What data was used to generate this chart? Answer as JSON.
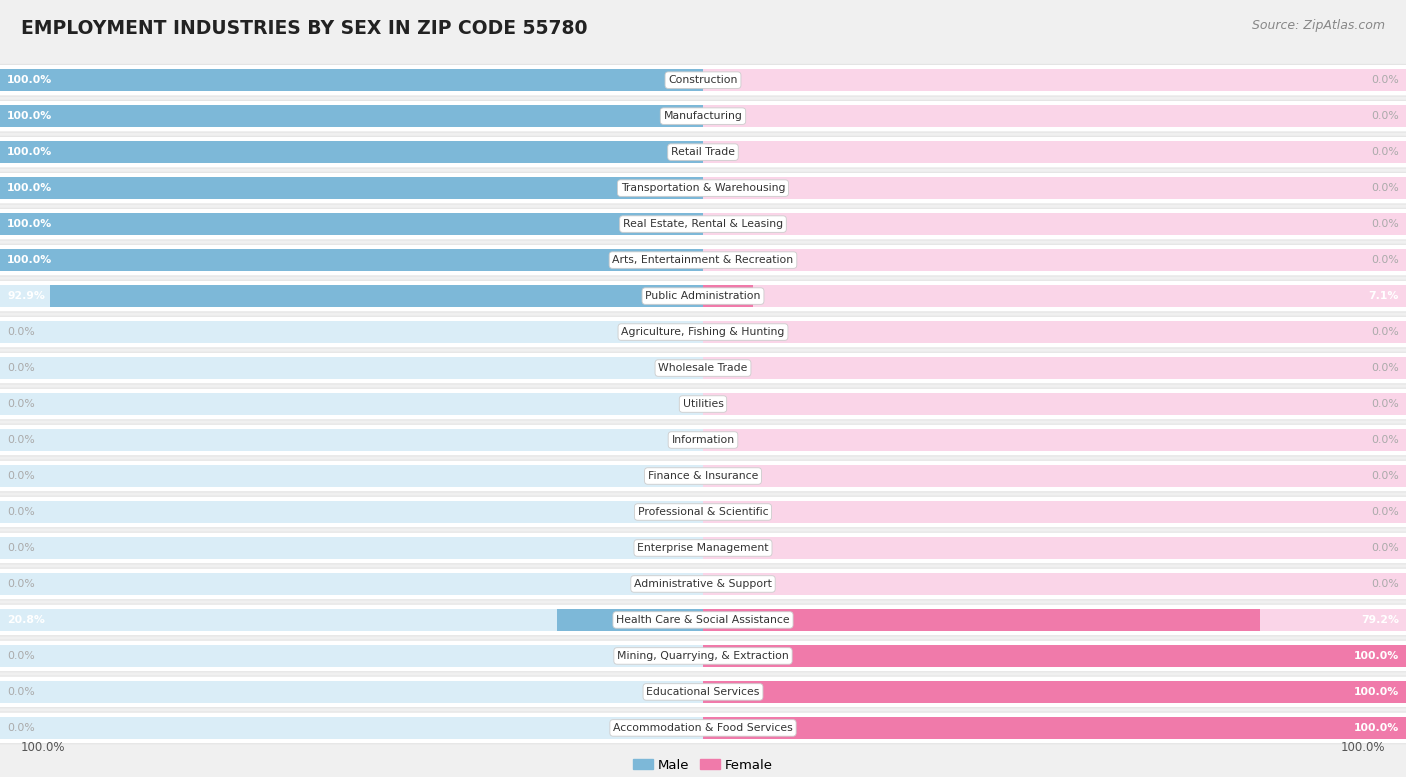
{
  "title": "EMPLOYMENT INDUSTRIES BY SEX IN ZIP CODE 55780",
  "source": "Source: ZipAtlas.com",
  "categories": [
    "Construction",
    "Manufacturing",
    "Retail Trade",
    "Transportation & Warehousing",
    "Real Estate, Rental & Leasing",
    "Arts, Entertainment & Recreation",
    "Public Administration",
    "Agriculture, Fishing & Hunting",
    "Wholesale Trade",
    "Utilities",
    "Information",
    "Finance & Insurance",
    "Professional & Scientific",
    "Enterprise Management",
    "Administrative & Support",
    "Health Care & Social Assistance",
    "Mining, Quarrying, & Extraction",
    "Educational Services",
    "Accommodation & Food Services"
  ],
  "male": [
    100.0,
    100.0,
    100.0,
    100.0,
    100.0,
    100.0,
    92.9,
    0.0,
    0.0,
    0.0,
    0.0,
    0.0,
    0.0,
    0.0,
    0.0,
    20.8,
    0.0,
    0.0,
    0.0
  ],
  "female": [
    0.0,
    0.0,
    0.0,
    0.0,
    0.0,
    0.0,
    7.1,
    0.0,
    0.0,
    0.0,
    0.0,
    0.0,
    0.0,
    0.0,
    0.0,
    79.2,
    100.0,
    100.0,
    100.0
  ],
  "male_color": "#7db8d8",
  "female_color": "#f07aaa",
  "bar_bg_male": "#daedf7",
  "bar_bg_female": "#fad5e8",
  "bg_color": "#f0f0f0",
  "row_bg": "#ffffff",
  "title_color": "#222222",
  "pct_color_on_bar": "#ffffff",
  "pct_color_off_bar": "#999999",
  "figsize": [
    14.06,
    7.77
  ]
}
